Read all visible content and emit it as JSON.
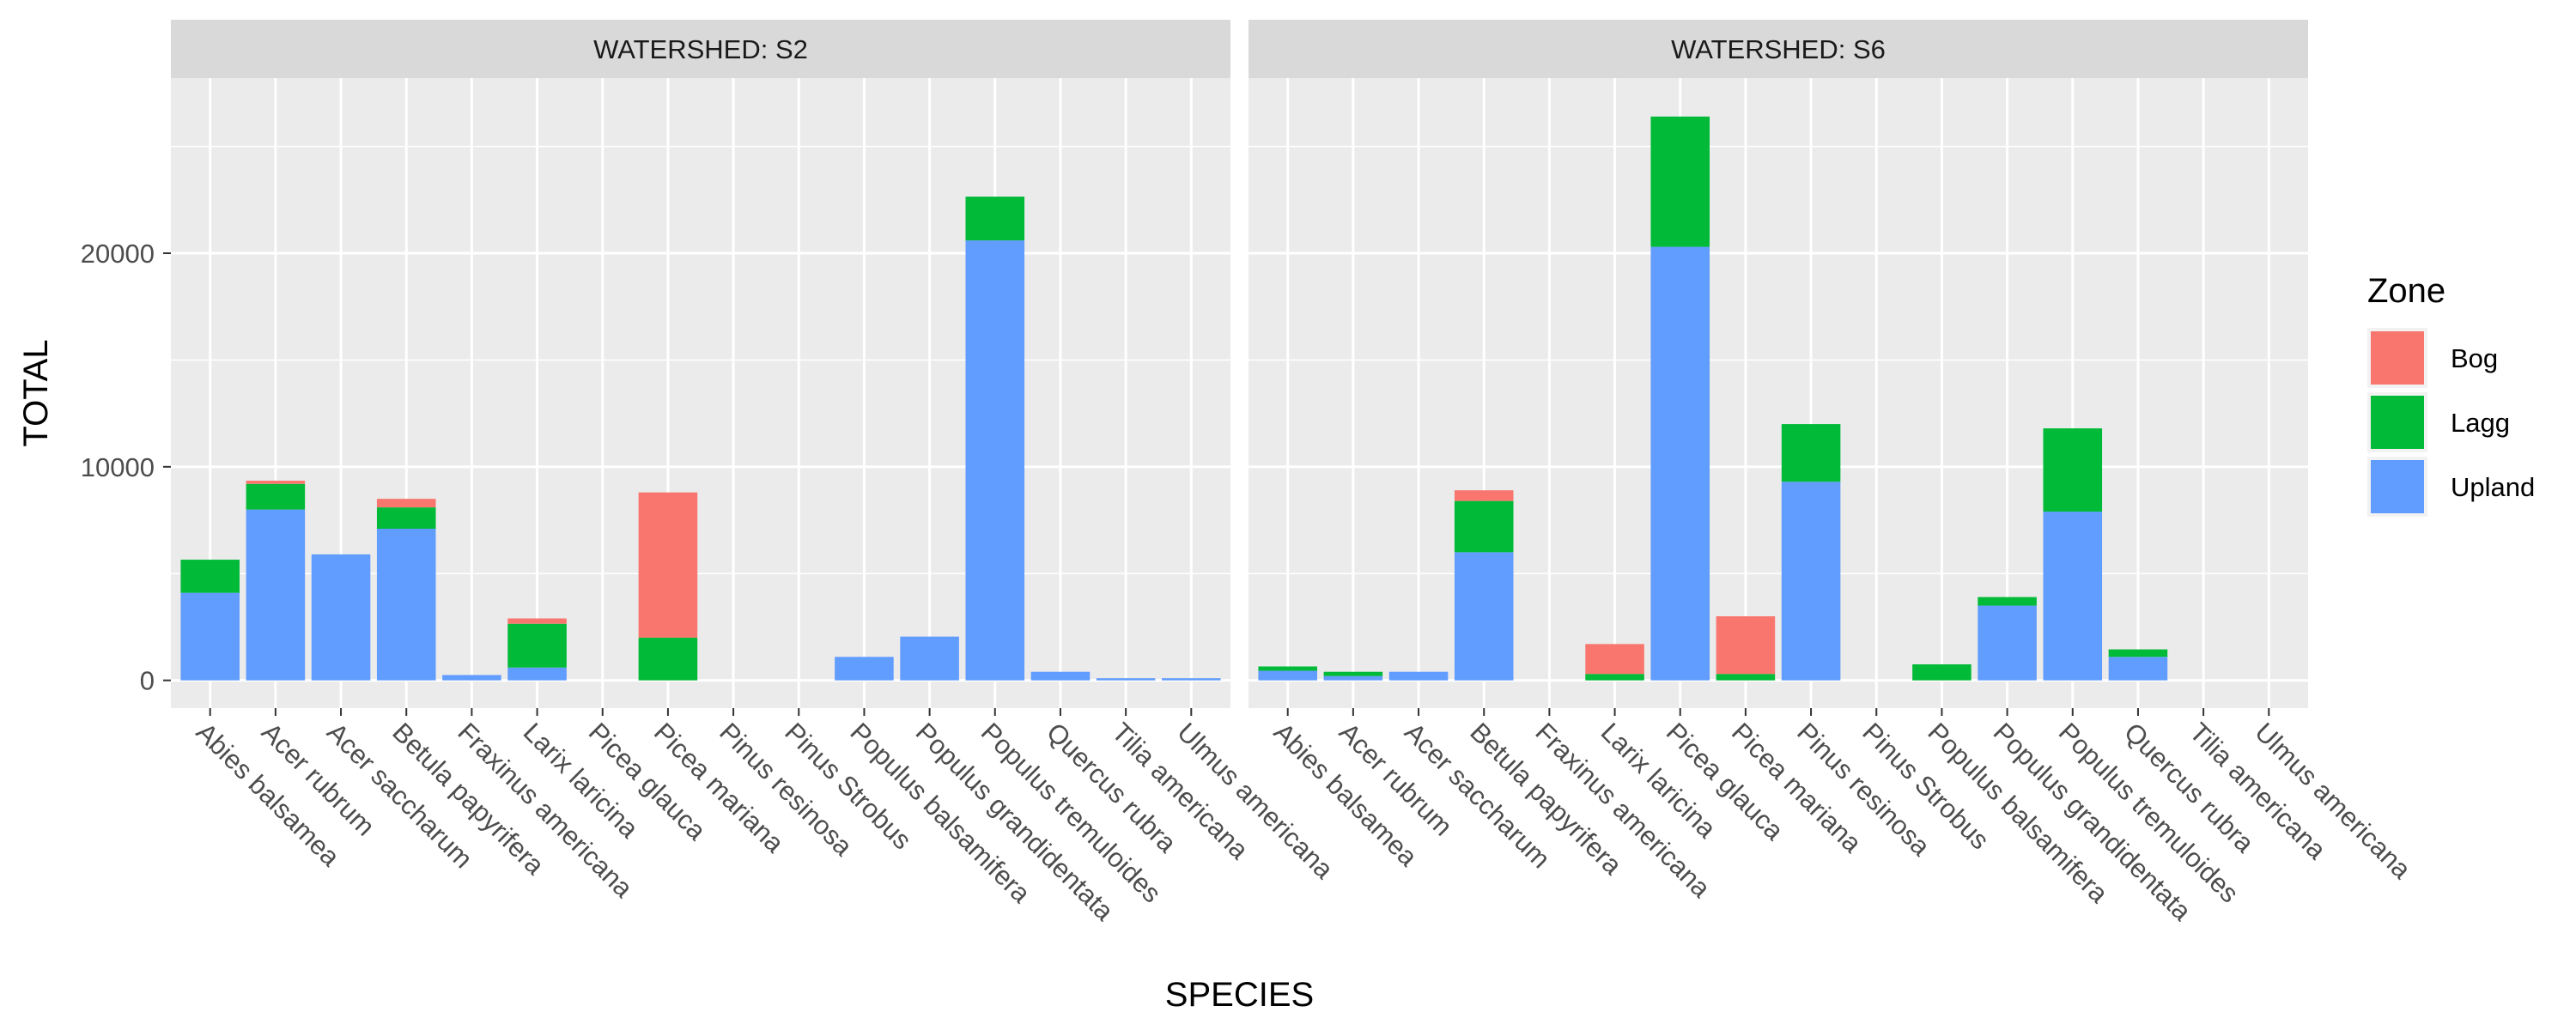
{
  "chart_data": {
    "type": "bar",
    "stacked": true,
    "xlabel": "SPECIES",
    "ylabel": "TOTAL",
    "ylim": [
      -1300,
      28200
    ],
    "yticks": [
      0,
      10000,
      20000
    ],
    "grid": true,
    "legend": {
      "title": "Zone",
      "position": "right",
      "entries": [
        {
          "name": "Bog",
          "color": "#F8766D"
        },
        {
          "name": "Lagg",
          "color": "#00BA38"
        },
        {
          "name": "Upland",
          "color": "#619CFF"
        }
      ]
    },
    "categories": [
      "Abies balsamea",
      "Acer rubrum",
      "Acer saccharum",
      "Betula papyrifera",
      "Fraxinus americana",
      "Larix laricina",
      "Picea glauca",
      "Picea mariana",
      "Pinus resinosa",
      "Pinus Strobus",
      "Populus balsamifera",
      "Populus grandidentata",
      "Populus tremuloides",
      "Quercus rubra",
      "Tilia americana",
      "Ulmus americana"
    ],
    "facets": [
      {
        "label": "WATERSHED: S2",
        "series": [
          {
            "name": "Upland",
            "values": [
              4100,
              8000,
              5900,
              7100,
              250,
              600,
              0,
              0,
              0,
              0,
              1100,
              2050,
              20600,
              400,
              100,
              100
            ]
          },
          {
            "name": "Lagg",
            "values": [
              1550,
              1200,
              0,
              1000,
              0,
              2050,
              0,
              2000,
              0,
              0,
              0,
              0,
              2050,
              0,
              0,
              0
            ]
          },
          {
            "name": "Bog",
            "values": [
              0,
              150,
              0,
              400,
              0,
              250,
              0,
              6800,
              0,
              0,
              0,
              0,
              0,
              0,
              0,
              0
            ]
          }
        ]
      },
      {
        "label": "WATERSHED: S6",
        "series": [
          {
            "name": "Upland",
            "values": [
              450,
              200,
              400,
              6000,
              0,
              0,
              20300,
              0,
              9300,
              0,
              0,
              3500,
              7900,
              1100,
              0,
              0
            ]
          },
          {
            "name": "Lagg",
            "values": [
              200,
              200,
              0,
              2400,
              0,
              300,
              6100,
              300,
              2700,
              0,
              750,
              400,
              3900,
              350,
              0,
              0
            ]
          },
          {
            "name": "Bog",
            "values": [
              0,
              0,
              0,
              500,
              0,
              1400,
              0,
              2700,
              0,
              0,
              0,
              0,
              0,
              0,
              0,
              0
            ]
          }
        ]
      }
    ]
  }
}
